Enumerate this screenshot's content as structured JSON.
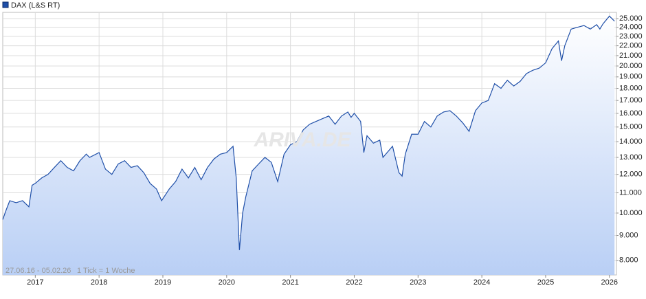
{
  "chart_data": {
    "type": "line",
    "legend": "DAX (L&S RT)",
    "range_note": "27.06.16 - 05.02.26",
    "tick_note": "1 Tick = 1 Woche",
    "watermark": "ARIVA.DE",
    "color": "#1f4fa8",
    "log_scale": true,
    "grid": true,
    "xlim": [
      2016.49,
      2026.11
    ],
    "xticks": [
      2017,
      2018,
      2019,
      2020,
      2021,
      2022,
      2023,
      2024,
      2025,
      2026
    ],
    "ylim": [
      7470,
      25750
    ],
    "yticks": [
      {
        "value": 8000,
        "label": "8.000"
      },
      {
        "value": 9000,
        "label": "9.000"
      },
      {
        "value": 10000,
        "label": "10.000"
      },
      {
        "value": 11000,
        "label": "11.000"
      },
      {
        "value": 12000,
        "label": "12.000"
      },
      {
        "value": 13000,
        "label": "13.000"
      },
      {
        "value": 14000,
        "label": "14.000"
      },
      {
        "value": 15000,
        "label": "15.000"
      },
      {
        "value": 16000,
        "label": "16.000"
      },
      {
        "value": 17000,
        "label": "17.000"
      },
      {
        "value": 18000,
        "label": "18.000"
      },
      {
        "value": 19000,
        "label": "19.000"
      },
      {
        "value": 20000,
        "label": "20.000"
      },
      {
        "value": 21000,
        "label": "21.000"
      },
      {
        "value": 22000,
        "label": "22.000"
      },
      {
        "value": 23000,
        "label": "23.000"
      },
      {
        "value": 24000,
        "label": "24.000"
      },
      {
        "value": 25000,
        "label": "25.000"
      }
    ],
    "x": [
      2016.49,
      2016.55,
      2016.6,
      2016.7,
      2016.8,
      2016.9,
      2016.95,
      2017.0,
      2017.1,
      2017.2,
      2017.3,
      2017.4,
      2017.5,
      2017.6,
      2017.7,
      2017.8,
      2017.85,
      2018.0,
      2018.1,
      2018.2,
      2018.3,
      2018.4,
      2018.5,
      2018.6,
      2018.7,
      2018.8,
      2018.9,
      2018.98,
      2019.1,
      2019.2,
      2019.3,
      2019.4,
      2019.5,
      2019.6,
      2019.7,
      2019.8,
      2019.9,
      2020.0,
      2020.1,
      2020.15,
      2020.2,
      2020.25,
      2020.3,
      2020.4,
      2020.5,
      2020.6,
      2020.7,
      2020.8,
      2020.9,
      2021.0,
      2021.1,
      2021.2,
      2021.3,
      2021.4,
      2021.5,
      2021.6,
      2021.7,
      2021.8,
      2021.9,
      2021.95,
      2022.0,
      2022.1,
      2022.15,
      2022.2,
      2022.3,
      2022.4,
      2022.45,
      2022.6,
      2022.7,
      2022.75,
      2022.8,
      2022.9,
      2023.0,
      2023.1,
      2023.2,
      2023.3,
      2023.4,
      2023.5,
      2023.6,
      2023.7,
      2023.8,
      2023.9,
      2024.0,
      2024.1,
      2024.2,
      2024.3,
      2024.4,
      2024.5,
      2024.6,
      2024.7,
      2024.8,
      2024.9,
      2025.0,
      2025.1,
      2025.2,
      2025.25,
      2025.3,
      2025.4,
      2025.5,
      2025.6,
      2025.7,
      2025.8,
      2025.85,
      2025.9,
      2026.0,
      2026.08
    ],
    "values": [
      9700,
      10200,
      10600,
      10500,
      10600,
      10300,
      11400,
      11500,
      11800,
      12000,
      12400,
      12800,
      12400,
      12200,
      12800,
      13200,
      13000,
      13300,
      12300,
      12000,
      12600,
      12800,
      12400,
      12500,
      12100,
      11500,
      11200,
      10600,
      11200,
      11600,
      12300,
      11800,
      12400,
      11700,
      12400,
      12900,
      13200,
      13300,
      13700,
      11800,
      8400,
      10000,
      10800,
      12200,
      12600,
      13000,
      12700,
      11600,
      13200,
      13800,
      14000,
      14800,
      15200,
      15400,
      15600,
      15800,
      15200,
      15800,
      16100,
      15700,
      16000,
      15400,
      13300,
      14400,
      13900,
      14100,
      13000,
      13700,
      12100,
      11900,
      13200,
      14500,
      14500,
      15400,
      15000,
      15800,
      16100,
      16200,
      15800,
      15300,
      14700,
      16200,
      16800,
      17000,
      18400,
      18000,
      18700,
      18200,
      18600,
      19300,
      19600,
      19800,
      20300,
      21700,
      22500,
      20500,
      22000,
      23800,
      24000,
      24200,
      23800,
      24300,
      23800,
      24400,
      25300,
      24700
    ]
  }
}
